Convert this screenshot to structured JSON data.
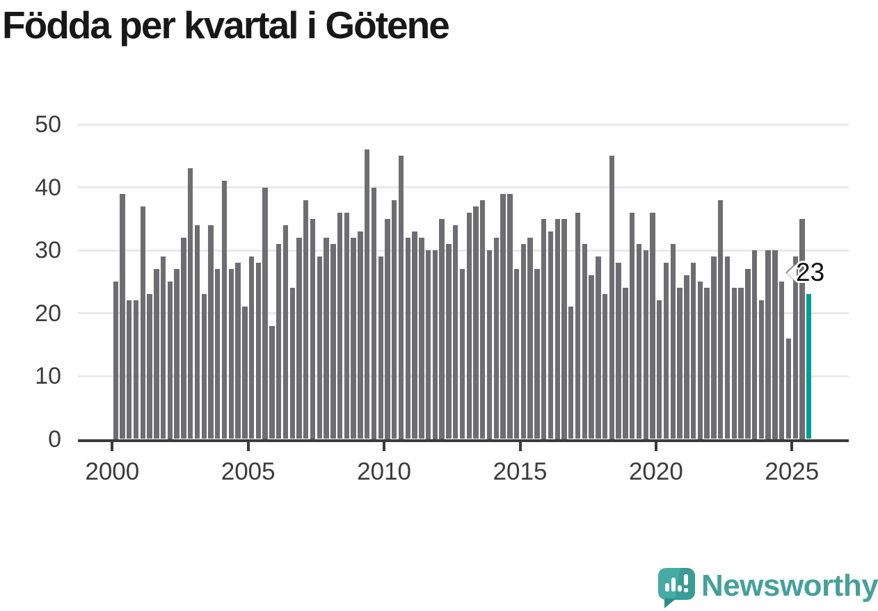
{
  "title": "Födda per kvartal i Götene",
  "chart_data": {
    "type": "bar",
    "title": "Födda per kvartal i Götene",
    "xlabel": "",
    "ylabel": "",
    "ylim": [
      0,
      50
    ],
    "yticks": [
      0,
      10,
      20,
      30,
      40,
      50
    ],
    "xtick_years": [
      "2000",
      "2005",
      "2010",
      "2015",
      "2020",
      "2025"
    ],
    "grid": true,
    "legend": "none",
    "bar_color": "#6d6d72",
    "highlight_color": "#009e9a",
    "grid_color": "#e9e9e9",
    "axis_color": "#3a3a3a",
    "tick_text_color": "#3b3b3b",
    "highlight_index": 102,
    "highlight_label": "23",
    "quarters": [
      "2000-K1",
      "2000-K2",
      "2000-K3",
      "2000-K4",
      "2001-K1",
      "2001-K2",
      "2001-K3",
      "2001-K4",
      "2002-K1",
      "2002-K2",
      "2002-K3",
      "2002-K4",
      "2003-K1",
      "2003-K2",
      "2003-K3",
      "2003-K4",
      "2004-K1",
      "2004-K2",
      "2004-K3",
      "2004-K4",
      "2005-K1",
      "2005-K2",
      "2005-K3",
      "2005-K4",
      "2006-K1",
      "2006-K2",
      "2006-K3",
      "2006-K4",
      "2007-K1",
      "2007-K2",
      "2007-K3",
      "2007-K4",
      "2008-K1",
      "2008-K2",
      "2008-K3",
      "2008-K4",
      "2009-K1",
      "2009-K2",
      "2009-K3",
      "2009-K4",
      "2010-K1",
      "2010-K2",
      "2010-K3",
      "2010-K4",
      "2011-K1",
      "2011-K2",
      "2011-K3",
      "2011-K4",
      "2012-K1",
      "2012-K2",
      "2012-K3",
      "2012-K4",
      "2013-K1",
      "2013-K2",
      "2013-K3",
      "2013-K4",
      "2014-K1",
      "2014-K2",
      "2014-K3",
      "2014-K4",
      "2015-K1",
      "2015-K2",
      "2015-K3",
      "2015-K4",
      "2016-K1",
      "2016-K2",
      "2016-K3",
      "2016-K4",
      "2017-K1",
      "2017-K2",
      "2017-K3",
      "2017-K4",
      "2018-K1",
      "2018-K2",
      "2018-K3",
      "2018-K4",
      "2019-K1",
      "2019-K2",
      "2019-K3",
      "2019-K4",
      "2020-K1",
      "2020-K2",
      "2020-K3",
      "2020-K4",
      "2021-K1",
      "2021-K2",
      "2021-K3",
      "2021-K4",
      "2022-K1",
      "2022-K2",
      "2022-K3",
      "2022-K4",
      "2023-K1",
      "2023-K2",
      "2023-K3",
      "2023-K4",
      "2024-K1",
      "2024-K2",
      "2024-K3",
      "2024-K4",
      "2025-K1",
      "2025-K2",
      "2025-K3"
    ],
    "values": [
      25,
      39,
      22,
      22,
      37,
      23,
      27,
      29,
      25,
      27,
      32,
      43,
      34,
      23,
      34,
      27,
      41,
      27,
      28,
      21,
      29,
      28,
      40,
      18,
      31,
      34,
      24,
      32,
      38,
      35,
      29,
      32,
      31,
      36,
      36,
      32,
      33,
      46,
      40,
      29,
      35,
      38,
      45,
      32,
      33,
      32,
      30,
      30,
      35,
      31,
      34,
      27,
      36,
      37,
      38,
      30,
      32,
      39,
      39,
      27,
      31,
      32,
      27,
      35,
      33,
      35,
      35,
      21,
      36,
      31,
      26,
      29,
      23,
      45,
      28,
      24,
      36,
      31,
      30,
      36,
      22,
      28,
      31,
      24,
      26,
      28,
      25,
      24,
      29,
      38,
      29,
      24,
      24,
      27,
      30,
      22,
      30,
      30,
      25,
      16,
      29,
      35,
      23
    ]
  },
  "annotation": {
    "label": "23"
  },
  "branding": {
    "name": "Newsworthy",
    "icon": "newsworthy-speech-bubble-chart-icon",
    "color": "#47a09b"
  }
}
